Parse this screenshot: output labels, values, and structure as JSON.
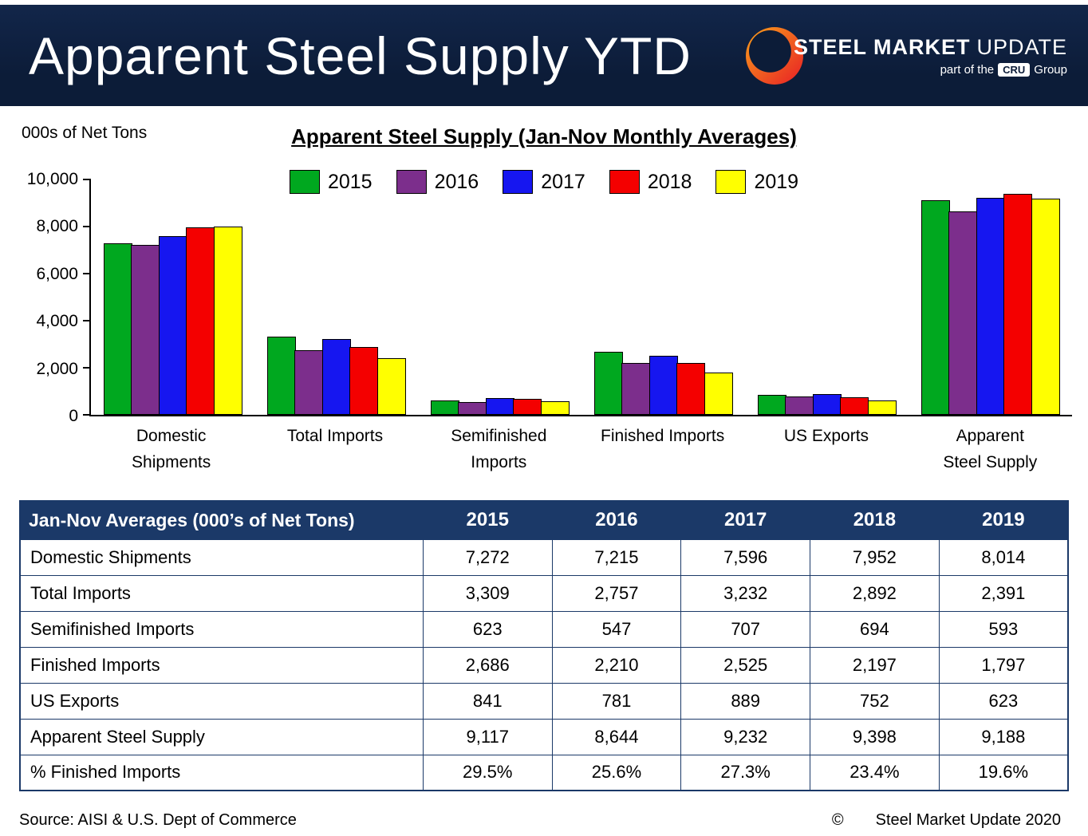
{
  "header": {
    "title": "Apparent Steel Supply YTD",
    "logo": {
      "steel": "STEEL",
      "market": "MARKET",
      "update": "UPDATE",
      "part_of": "part of the",
      "cru": "CRU",
      "group": "Group"
    }
  },
  "chart": {
    "units_label": "000s of Net Tons",
    "title": "Apparent Steel Supply (Jan-Nov Monthly Averages)"
  },
  "chart_data": {
    "type": "bar",
    "title": "Apparent Steel Supply (Jan-Nov Monthly Averages)",
    "ylabel": "000s of Net Tons",
    "ylim": [
      0,
      10000
    ],
    "yticks": [
      "0",
      "2,000",
      "4,000",
      "6,000",
      "8,000",
      "10,000"
    ],
    "grid": false,
    "legend_position": "top",
    "categories": [
      "Domestic Shipments",
      "Total Imports",
      "Semifinished Imports",
      "Finished Imports",
      "US Exports",
      "Apparent Steel Supply"
    ],
    "categories_display": [
      [
        "Domestic",
        "Shipments"
      ],
      [
        "Total Imports"
      ],
      [
        "Semifinished",
        "Imports"
      ],
      [
        "Finished Imports"
      ],
      [
        "US Exports"
      ],
      [
        "Apparent",
        "Steel Supply"
      ]
    ],
    "series": [
      {
        "name": "2015",
        "color": "#00a81f",
        "values": [
          7272,
          3309,
          623,
          2686,
          841,
          9117
        ]
      },
      {
        "name": "2016",
        "color": "#7c2e8c",
        "values": [
          7215,
          2757,
          547,
          2210,
          781,
          8644
        ]
      },
      {
        "name": "2017",
        "color": "#1616f0",
        "values": [
          7596,
          3232,
          707,
          2525,
          889,
          9232
        ]
      },
      {
        "name": "2018",
        "color": "#f40000",
        "values": [
          7952,
          2892,
          694,
          2197,
          752,
          9398
        ]
      },
      {
        "name": "2019",
        "color": "#ffff00",
        "values": [
          8014,
          2391,
          593,
          1797,
          623,
          9188
        ]
      }
    ]
  },
  "table": {
    "header": [
      "Jan-Nov Averages (000’s of Net Tons)",
      "2015",
      "2016",
      "2017",
      "2018",
      "2019"
    ],
    "rows": [
      [
        "Domestic Shipments",
        "7,272",
        "7,215",
        "7,596",
        "7,952",
        "8,014"
      ],
      [
        "Total Imports",
        "3,309",
        "2,757",
        "3,232",
        "2,892",
        "2,391"
      ],
      [
        "Semifinished Imports",
        "623",
        "547",
        "707",
        "694",
        "593"
      ],
      [
        "Finished Imports",
        "2,686",
        "2,210",
        "2,525",
        "2,197",
        "1,797"
      ],
      [
        "US Exports",
        "841",
        "781",
        "889",
        "752",
        "623"
      ],
      [
        "Apparent Steel Supply",
        "9,117",
        "8,644",
        "9,232",
        "9,398",
        "9,188"
      ],
      [
        "% Finished Imports",
        "29.5%",
        "25.6%",
        "27.3%",
        "23.4%",
        "19.6%"
      ]
    ]
  },
  "footer": {
    "source": "Source:  AISI & U.S. Dept of Commerce",
    "copyright_symbol": "©",
    "copyright_text": "Steel Market Update 2020"
  }
}
